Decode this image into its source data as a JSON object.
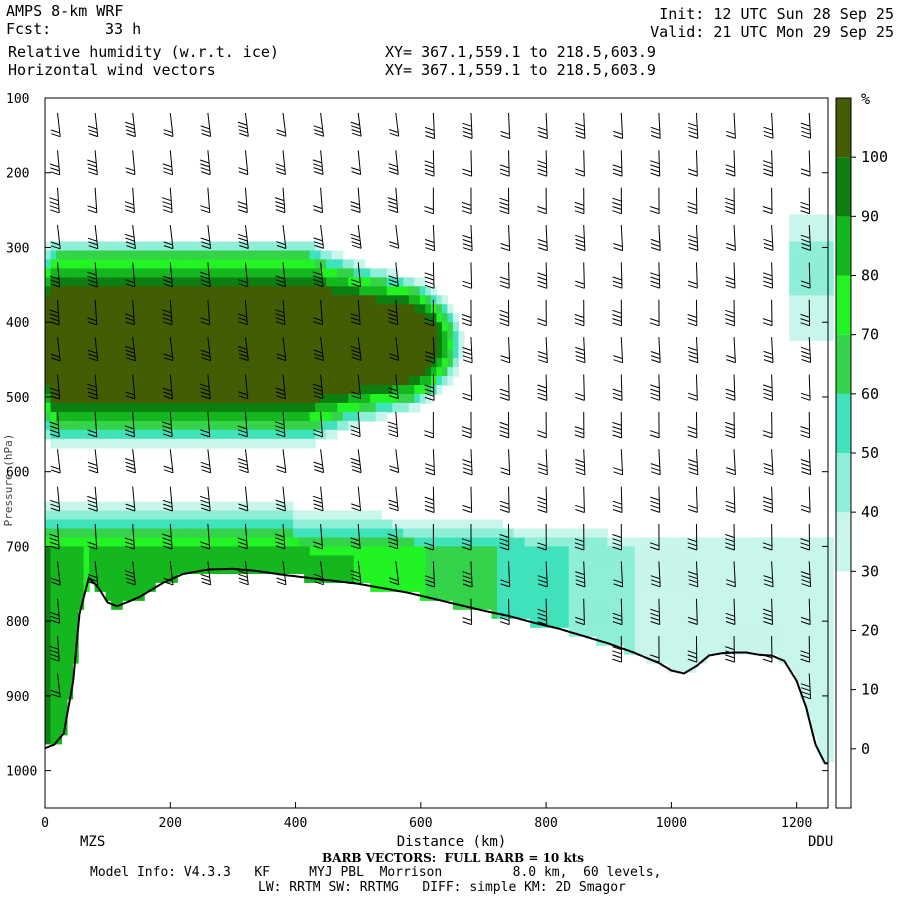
{
  "header": {
    "model_title": "AMPS 8-km WRF",
    "forecast_label": "Fcst:",
    "forecast_hours": "33 h",
    "field1": "Relative humidity (w.r.t. ice)",
    "field2": "Horizontal wind vectors",
    "xy1": "XY= 367.1,559.1 to 218.5,603.9",
    "xy2": "XY= 367.1,559.1 to 218.5,603.9",
    "init": "Init: 12 UTC Sun 28 Sep 25",
    "valid": "Valid: 21 UTC Mon 29 Sep 25"
  },
  "footer": {
    "barb_note": "BARB VECTORS:  FULL BARB = 10 kts",
    "model_info": "Model Info: V4.3.3   KF     MYJ PBL  Morrison         8.0 km,  60 levels,",
    "physics": "LW: RRTM SW: RRTMG   DIFF: simple KM: 2D Smagor"
  },
  "chart_data": {
    "type": "heatmap",
    "title": "Relative humidity (w.r.t. ice) and horizontal wind vectors, cross-section",
    "xlabel": "Distance (km)",
    "ylabel": "Pressure (hPa)",
    "x_range": [
      0,
      1250
    ],
    "y_range": [
      1050,
      100
    ],
    "x_ticks": [
      0,
      200,
      400,
      600,
      800,
      1000,
      1200
    ],
    "y_ticks": [
      100,
      200,
      300,
      400,
      500,
      600,
      700,
      800,
      900,
      1000
    ],
    "x_endpoints": {
      "left": "MZS",
      "right": "DDU"
    },
    "colorbar": {
      "unit": "%",
      "ticks": [
        0,
        10,
        20,
        30,
        40,
        50,
        60,
        70,
        80,
        90,
        100
      ],
      "levels": [
        {
          "min": 30,
          "max": 40,
          "color": "#c8f5ec"
        },
        {
          "min": 40,
          "max": 50,
          "color": "#8eeed8"
        },
        {
          "min": 50,
          "max": 60,
          "color": "#40e2bc"
        },
        {
          "min": 60,
          "max": 70,
          "color": "#34d34a"
        },
        {
          "min": 70,
          "max": 80,
          "color": "#22f322"
        },
        {
          "min": 80,
          "max": 90,
          "color": "#14b81e"
        },
        {
          "min": 90,
          "max": 100,
          "color": "#0c7f10"
        },
        {
          "min": 100,
          "max": 110,
          "color": "#425d04"
        }
      ]
    },
    "terrain_hpa": {
      "x": [
        0,
        15,
        30,
        45,
        55,
        70,
        85,
        100,
        115,
        130,
        150,
        170,
        190,
        220,
        260,
        300,
        340,
        380,
        420,
        460,
        500,
        540,
        580,
        620,
        660,
        700,
        740,
        780,
        820,
        860,
        900,
        940,
        980,
        1000,
        1020,
        1040,
        1060,
        1080,
        1100,
        1120,
        1140,
        1160,
        1180,
        1200,
        1215,
        1230,
        1245
      ],
      "y": [
        970,
        965,
        950,
        880,
        790,
        742,
        755,
        775,
        780,
        775,
        768,
        758,
        748,
        737,
        731,
        730,
        733,
        738,
        742,
        746,
        750,
        756,
        762,
        770,
        778,
        786,
        793,
        802,
        810,
        820,
        830,
        842,
        856,
        866,
        870,
        860,
        846,
        843,
        842,
        842,
        845,
        846,
        853,
        880,
        915,
        965,
        990
      ]
    },
    "rh_regions": [
      {
        "name": "upper_cloud_layer",
        "pressure_hpa": [
          280,
          530
        ],
        "x_km": [
          0,
          640
        ],
        "max_rh": 100,
        "note": "saturated layer (>100%) centred near 400-500 hPa extending to ~580 km"
      },
      {
        "name": "lower_moist_layer",
        "pressure_hpa": [
          640,
          800
        ],
        "x_km": [
          60,
          1250
        ],
        "max_rh": 80,
        "note": "moist layer above terrain, >70% near MZS, 30-60% toward DDU"
      },
      {
        "name": "ddu_column",
        "pressure_hpa": [
          260,
          420
        ],
        "x_km": [
          1190,
          1250
        ],
        "max_rh": 50,
        "note": "moist pocket near DDU"
      }
    ],
    "wind_barbs": {
      "columns_km": [
        20,
        80,
        140,
        200,
        260,
        320,
        380,
        440,
        500,
        560,
        620,
        680,
        740,
        800,
        860,
        920,
        980,
        1040,
        1100,
        1160,
        1220
      ],
      "levels_hpa": [
        120,
        170,
        220,
        270,
        320,
        370,
        420,
        470,
        520,
        570,
        620,
        670,
        720,
        770,
        820,
        870
      ],
      "full_barb_kts": 10
    }
  }
}
